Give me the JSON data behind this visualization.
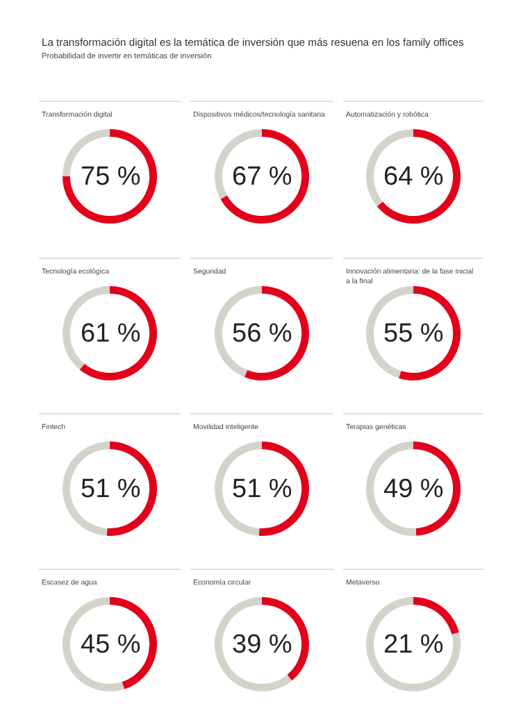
{
  "chart_data": [
    {
      "type": "other",
      "title": "La transformación digital es la temática de inversión que más resuena en los family offices",
      "subtitle": "Probabilidad de invertir en temáticas de inversión"
    },
    {
      "type": "donut",
      "title": "Transformación digital",
      "categories": [
        null,
        null
      ],
      "values": [
        75,
        25
      ],
      "colors": [
        "#e2001a",
        "#d5d2ca"
      ],
      "annotations": [
        "75 %"
      ]
    },
    {
      "type": "donut",
      "title": "Dispositivos médicos/tecnología sanitaria",
      "categories": [
        null,
        null
      ],
      "values": [
        67,
        33
      ],
      "colors": [
        "#e2001a",
        "#d5d2ca"
      ],
      "annotations": [
        "67 %"
      ]
    },
    {
      "type": "donut",
      "title": "Automatización y robótica",
      "categories": [
        null,
        null
      ],
      "values": [
        64,
        36
      ],
      "colors": [
        "#e2001a",
        "#d5d2ca"
      ],
      "annotations": [
        "64 %"
      ]
    },
    {
      "type": "donut",
      "title": "Tecnología ecológica",
      "categories": [
        null,
        null
      ],
      "values": [
        61,
        39
      ],
      "colors": [
        "#e2001a",
        "#d5d2ca"
      ],
      "annotations": [
        "61 %"
      ]
    },
    {
      "type": "donut",
      "title": "Seguridad",
      "categories": [
        null,
        null
      ],
      "values": [
        56,
        44
      ],
      "colors": [
        "#e2001a",
        "#d5d2ca"
      ],
      "annotations": [
        "56 %"
      ]
    },
    {
      "type": "donut",
      "title": "Innovación alimentaria: de la fase inicial a la final",
      "categories": [
        null,
        null
      ],
      "values": [
        55,
        45
      ],
      "colors": [
        "#e2001a",
        "#d5d2ca"
      ],
      "annotations": [
        "55 %"
      ]
    },
    {
      "type": "donut",
      "title": "Fintech",
      "categories": [
        null,
        null
      ],
      "values": [
        51,
        49
      ],
      "colors": [
        "#e2001a",
        "#d5d2ca"
      ],
      "annotations": [
        "51 %"
      ]
    },
    {
      "type": "donut",
      "title": "Movilidad inteligente",
      "categories": [
        null,
        null
      ],
      "values": [
        51,
        49
      ],
      "colors": [
        "#e2001a",
        "#d5d2ca"
      ],
      "annotations": [
        "51 %"
      ]
    },
    {
      "type": "donut",
      "title": "Terapias genéticas",
      "categories": [
        null,
        null
      ],
      "values": [
        49,
        51
      ],
      "colors": [
        "#e2001a",
        "#d5d2ca"
      ],
      "annotations": [
        "49 %"
      ]
    },
    {
      "type": "donut",
      "title": "Escasez de agua",
      "categories": [
        null,
        null
      ],
      "values": [
        45,
        55
      ],
      "colors": [
        "#e2001a",
        "#d5d2ca"
      ],
      "annotations": [
        "45 %"
      ]
    },
    {
      "type": "donut",
      "title": "Economía circular",
      "categories": [
        null,
        null
      ],
      "values": [
        39,
        61
      ],
      "colors": [
        "#e2001a",
        "#d5d2ca"
      ],
      "annotations": [
        "39 %"
      ]
    },
    {
      "type": "donut",
      "title": "Metaverso",
      "categories": [
        null,
        null
      ],
      "values": [
        21,
        79
      ],
      "colors": [
        "#e2001a",
        "#d5d2ca"
      ],
      "annotations": [
        "21 %"
      ]
    }
  ]
}
